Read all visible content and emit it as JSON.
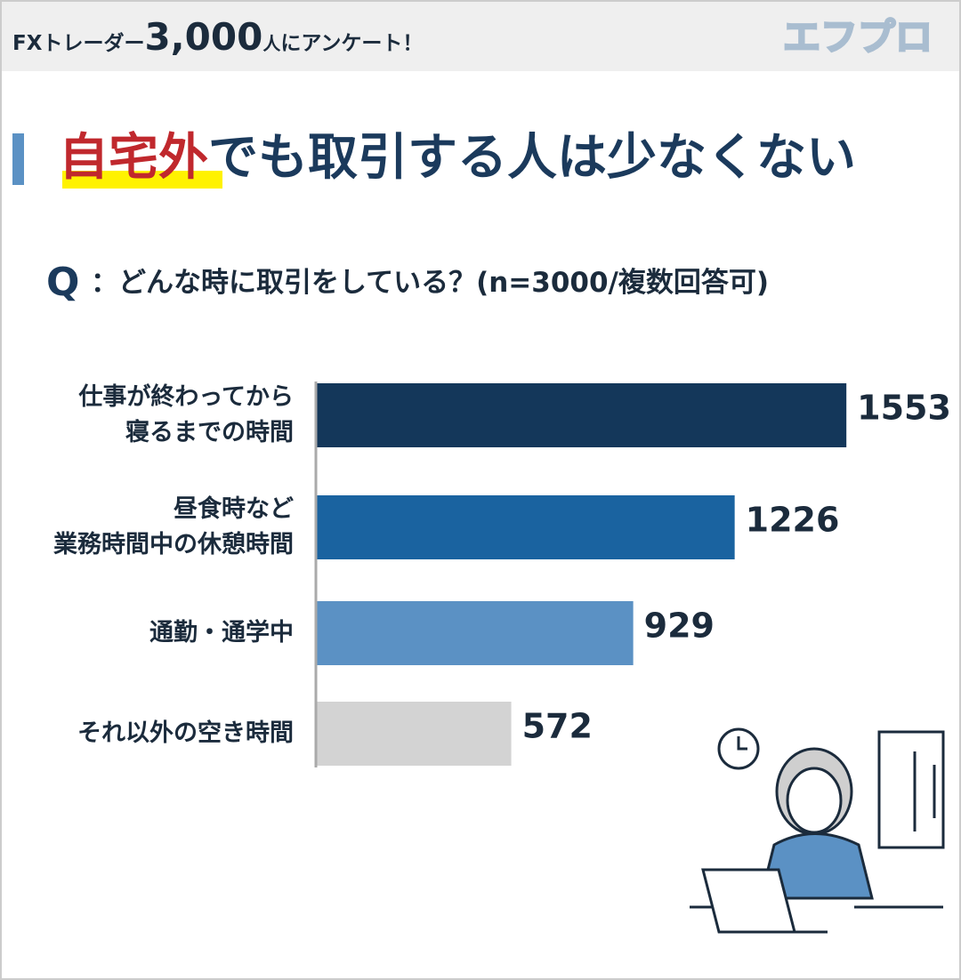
{
  "header": {
    "prefix": "FXトレーダー",
    "count": "3,000",
    "unit": "人",
    "suffix": "にアンケート！",
    "logo": "エフプロ"
  },
  "chart_data": {
    "type": "bar",
    "orientation": "horizontal",
    "title_highlight": "自宅外",
    "title": "でも取引する人は少なくない",
    "question_mark": "Q",
    "question": "：どんな時に取引をしている？(n=3000/複数回答可)",
    "categories": [
      "仕事が終わってから\n寝るまでの時間",
      "昼食時など\n業務時間中の休憩時間",
      "通勤・通学中",
      "それ以外の空き時間"
    ],
    "values": [
      1553,
      1226,
      929,
      572
    ],
    "colors": [
      "#14375a",
      "#1a63a0",
      "#5b91c4",
      "#d3d3d3"
    ],
    "xlim": [
      0,
      1800
    ]
  }
}
